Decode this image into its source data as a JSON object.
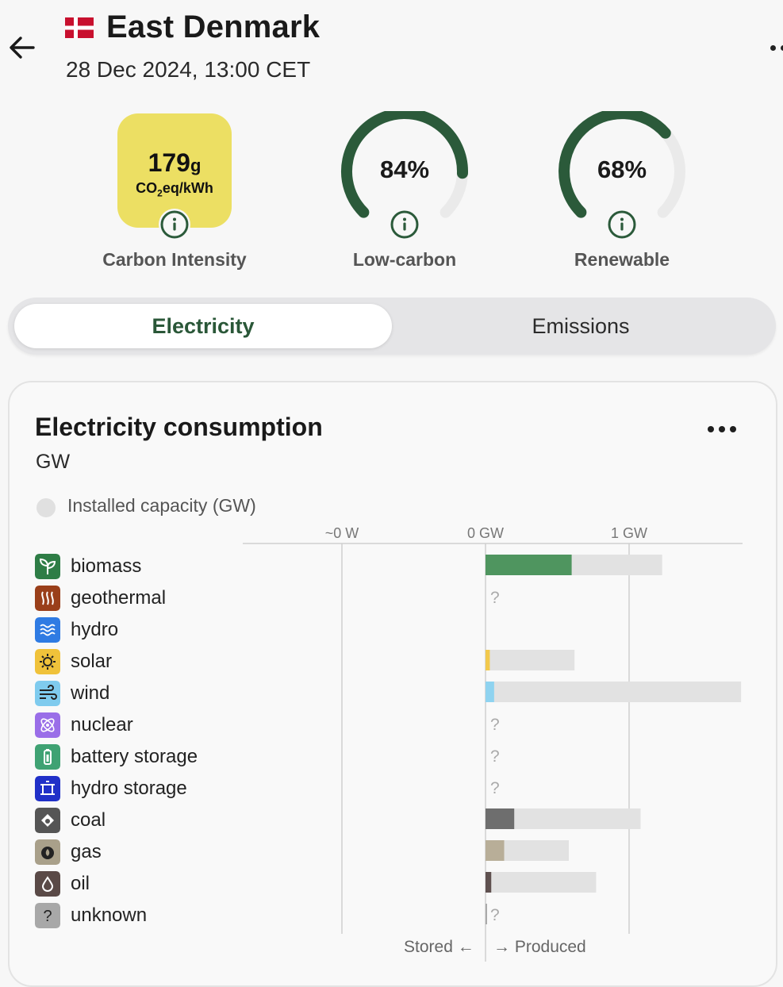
{
  "header": {
    "zone_name": "East Denmark",
    "datetime": "28 Dec 2024, 13:00 CET",
    "flag_icon": "denmark-flag-icon",
    "back_icon": "arrow-left-icon",
    "more_icon": "more-horizontal-icon"
  },
  "metrics": {
    "carbon_intensity": {
      "value": "179",
      "unit_g": "g",
      "unit_rest": "CO",
      "unit_sub": "2",
      "unit_tail": "eq/kWh",
      "label": "Carbon Intensity",
      "color": "#ecdf63"
    },
    "low_carbon": {
      "value": "84%",
      "fraction": 0.84,
      "label": "Low-carbon"
    },
    "renewable": {
      "value": "68%",
      "fraction": 0.68,
      "label": "Renewable"
    },
    "gauge_color": "#2b5a3a",
    "gauge_track_color": "#eaeaea"
  },
  "toggle": {
    "active": "Electricity",
    "inactive": "Emissions"
  },
  "card": {
    "title": "Electricity consumption",
    "unit": "GW",
    "legend_label": "Installed capacity (GW)"
  },
  "chart_data": {
    "type": "bar",
    "orientation": "horizontal",
    "x_ticks": [
      {
        "label": "~0 W",
        "value": -1.0
      },
      {
        "label": "0 GW",
        "value": 0
      },
      {
        "label": "1 GW",
        "value": 1.0
      }
    ],
    "xlim": [
      -1.7,
      1.78
    ],
    "footer": {
      "stored": "Stored ←",
      "produced": "→ Produced"
    },
    "unknown_marker": "?",
    "categories": [
      {
        "name": "biomass",
        "value": 0.6,
        "capacity": 1.23,
        "color": "#4f955f",
        "icon_color": "#2e7d46",
        "icon": "leaf-icon"
      },
      {
        "name": "geothermal",
        "value": null,
        "capacity": null,
        "color": "#a0461f",
        "icon_color": "#9a3f1a",
        "icon": "heat-waves-icon"
      },
      {
        "name": "hydro",
        "value": 0,
        "capacity": 0,
        "color": "#3b82f6",
        "icon_color": "#2f7be3",
        "icon": "water-waves-icon"
      },
      {
        "name": "solar",
        "value": 0.03,
        "capacity": 0.62,
        "color": "#f2c94c",
        "icon_color": "#f0c23a",
        "icon": "sun-icon"
      },
      {
        "name": "wind",
        "value": 0.06,
        "capacity": 1.78,
        "color": "#8fd3f0",
        "icon_color": "#7fcbee",
        "icon": "wind-icon"
      },
      {
        "name": "nuclear",
        "value": null,
        "capacity": null,
        "color": "#9b6fe6",
        "icon_color": "#9a6ee8",
        "icon": "atom-icon"
      },
      {
        "name": "battery storage",
        "value": null,
        "capacity": null,
        "color": "#4caf7c",
        "icon_color": "#3fa273",
        "icon": "battery-icon"
      },
      {
        "name": "hydro storage",
        "value": null,
        "capacity": null,
        "color": "#2334c9",
        "icon_color": "#2030c8",
        "icon": "dam-icon"
      },
      {
        "name": "coal",
        "value": 0.2,
        "capacity": 1.08,
        "color": "#6e6e6e",
        "icon_color": "#555555",
        "icon": "coal-icon"
      },
      {
        "name": "gas",
        "value": 0.13,
        "capacity": 0.58,
        "color": "#b8ae98",
        "icon_color": "#a9a08a",
        "icon": "gas-flame-icon"
      },
      {
        "name": "oil",
        "value": 0.04,
        "capacity": 0.77,
        "color": "#5f5150",
        "icon_color": "#5a4a47",
        "icon": "oil-drop-icon"
      },
      {
        "name": "unknown",
        "value": 0.01,
        "capacity": null,
        "color": "#aaaaaa",
        "icon_color": "#a8a8a8",
        "icon": "question-icon",
        "glyph": "?"
      }
    ]
  }
}
